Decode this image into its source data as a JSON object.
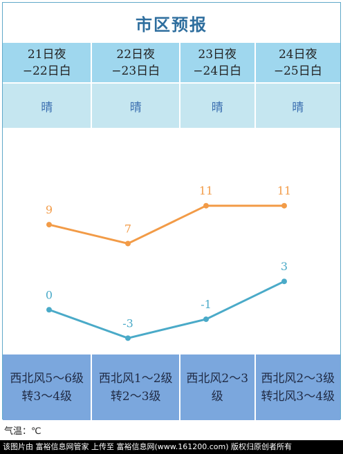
{
  "title": "市区预报",
  "columns": [
    {
      "date_line1": "21日夜",
      "date_line2": "−22日白",
      "weather": "晴",
      "wind_line1": "西北风5～6级",
      "wind_line2": "转3～4级"
    },
    {
      "date_line1": "22日夜",
      "date_line2": "−23日白",
      "weather": "晴",
      "wind_line1": "西北风1～2级",
      "wind_line2": "转2～3级"
    },
    {
      "date_line1": "23日夜",
      "date_line2": "−24日白",
      "weather": "晴",
      "wind_line1": "西北风2～3",
      "wind_line2": "级"
    },
    {
      "date_line1": "24日夜",
      "date_line2": "−25日白",
      "weather": "晴",
      "wind_line1": "西北风2～3级",
      "wind_line2": "转北风3～4级"
    }
  ],
  "unit_label": "气温：℃",
  "footer_text": "该图片由 富裕信息网管家 上传至 富裕信息网(www.161200.com) 版权归原创者所有",
  "chart_data": {
    "type": "line",
    "categories": [
      "21日夜−22日白",
      "22日夜−23日白",
      "23日夜−24日白",
      "24日夜−25日白"
    ],
    "series": [
      {
        "name": "",
        "color": "#f29b47",
        "values": [
          9,
          7,
          11,
          11
        ]
      },
      {
        "name": "",
        "color": "#4aaac8",
        "values": [
          0,
          -3,
          -1,
          3
        ]
      }
    ],
    "ylim": [
      -4,
      12
    ],
    "grid": false
  }
}
